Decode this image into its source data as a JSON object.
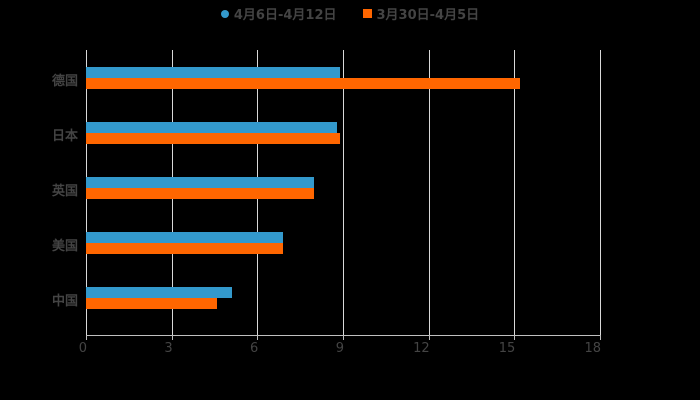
{
  "legend": [
    {
      "label": "4月6日-4月12日",
      "color": "#3399cc",
      "shape": "circle"
    },
    {
      "label": "3月30日-4月5日",
      "color": "#ff6600",
      "shape": "square"
    }
  ],
  "chart_data": {
    "type": "bar",
    "orientation": "horizontal",
    "title": "",
    "xlabel": "",
    "ylabel": "",
    "categories": [
      "德国",
      "日本",
      "英国",
      "美国",
      "中国"
    ],
    "series": [
      {
        "name": "4月6日-4月12日",
        "color": "#3399cc",
        "values": [
          8.9,
          8.8,
          8.0,
          6.9,
          5.1
        ]
      },
      {
        "name": "3月30日-4月5日",
        "color": "#ff6600",
        "values": [
          15.2,
          8.9,
          8.0,
          6.9,
          4.6
        ]
      }
    ],
    "xlim": [
      0,
      18
    ],
    "xticks": [
      "0",
      "3",
      "6",
      "9",
      "12",
      "15",
      "18"
    ],
    "grid": true,
    "legend_position": "top"
  }
}
